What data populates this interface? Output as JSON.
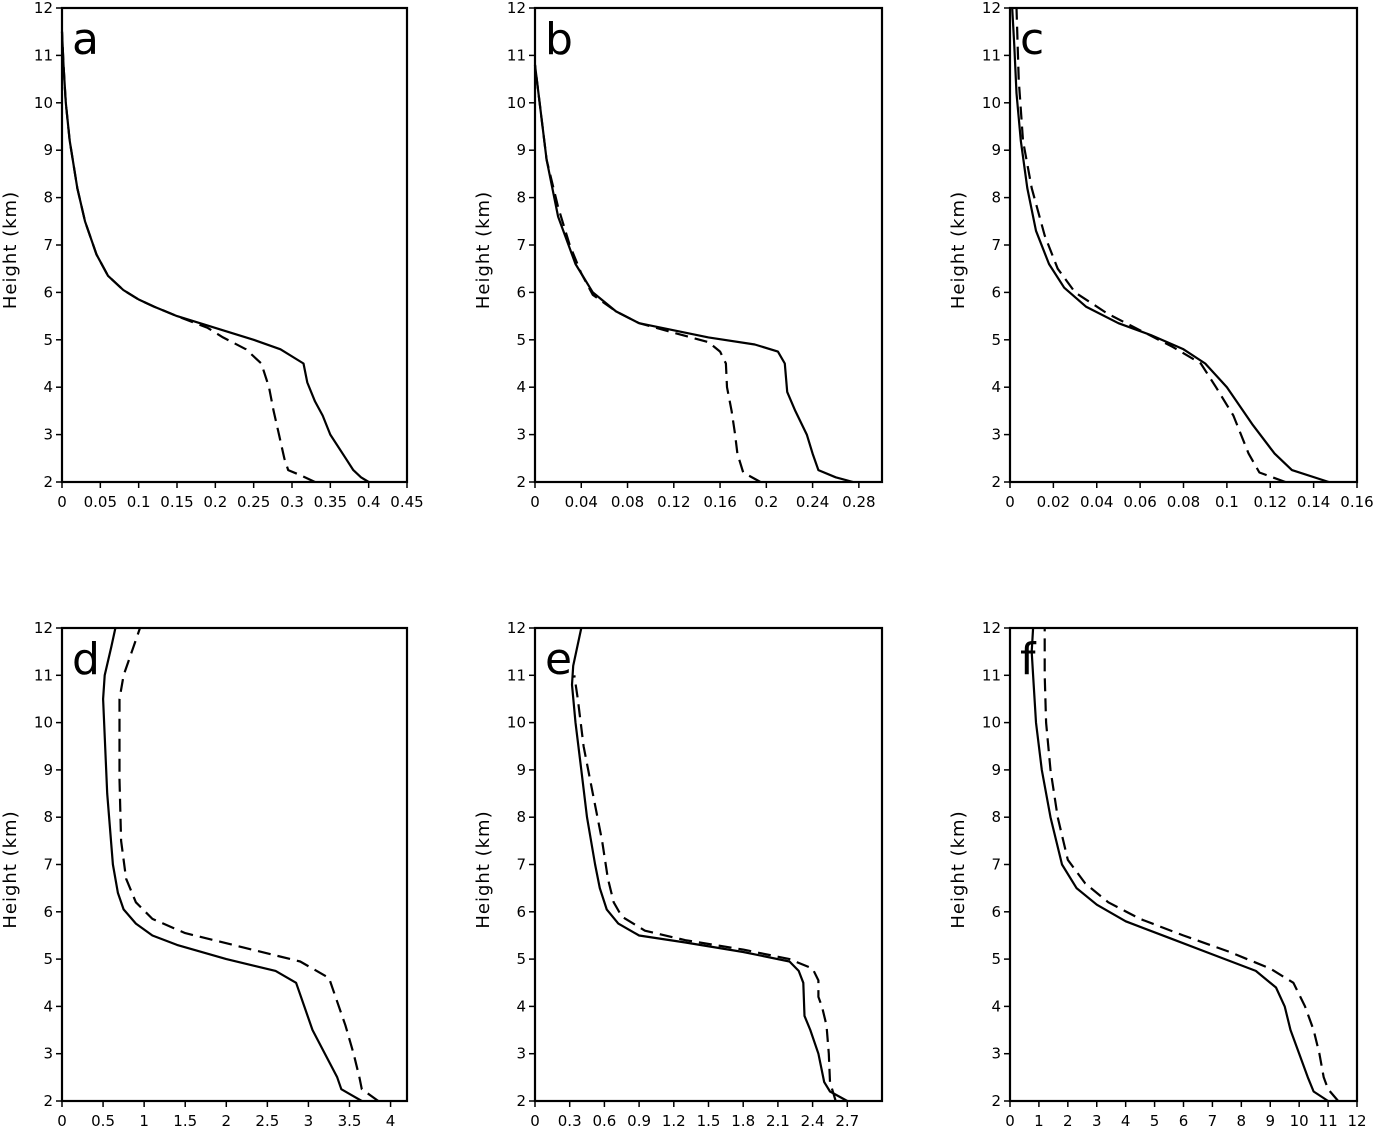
{
  "chart_data": [
    {
      "type": "line",
      "panel_label": "a",
      "ylabel": "Height (km)",
      "xlabel": "",
      "xlim": [
        0,
        0.45
      ],
      "ylim": [
        2,
        12
      ],
      "xticks": [
        0,
        0.05,
        0.1,
        0.15,
        0.2,
        0.25,
        0.3,
        0.35,
        0.4,
        0.45
      ],
      "yticks": [
        2,
        3,
        4,
        5,
        6,
        7,
        8,
        9,
        10,
        11,
        12
      ],
      "series": [
        {
          "name": "solid",
          "style": "solid",
          "x": [
            0.4,
            0.39,
            0.38,
            0.37,
            0.35,
            0.34,
            0.33,
            0.32,
            0.315,
            0.285,
            0.25,
            0.22,
            0.19,
            0.15,
            0.12,
            0.1,
            0.08,
            0.06,
            0.045,
            0.03,
            0.02,
            0.01,
            0.005,
            0.002,
            0.0
          ],
          "y": [
            2,
            2.1,
            2.25,
            2.5,
            3,
            3.4,
            3.7,
            4.1,
            4.5,
            4.8,
            5.0,
            5.15,
            5.3,
            5.5,
            5.7,
            5.85,
            6.05,
            6.35,
            6.8,
            7.5,
            8.2,
            9.2,
            10.0,
            10.8,
            11.5
          ]
        },
        {
          "name": "dashed",
          "style": "dashed",
          "x": [
            0.33,
            0.31,
            0.295,
            0.29,
            0.283,
            0.276,
            0.27,
            0.26,
            0.24,
            0.21,
            0.19,
            0.15,
            0.12,
            0.1,
            0.08,
            0.06,
            0.045,
            0.03,
            0.02,
            0.01,
            0.005,
            0.002,
            0.0
          ],
          "y": [
            2,
            2.15,
            2.25,
            2.5,
            3,
            3.5,
            4.0,
            4.5,
            4.8,
            5.05,
            5.25,
            5.5,
            5.7,
            5.85,
            6.05,
            6.35,
            6.8,
            7.5,
            8.2,
            9.2,
            10.0,
            10.8,
            11.5
          ]
        }
      ]
    },
    {
      "type": "line",
      "panel_label": "b",
      "ylabel": "Height (km)",
      "xlabel": "",
      "xlim": [
        0,
        0.3
      ],
      "ylim": [
        2,
        12
      ],
      "xticks": [
        0,
        0.04,
        0.08,
        0.12,
        0.16,
        0.2,
        0.24,
        0.28
      ],
      "yticks": [
        2,
        3,
        4,
        5,
        6,
        7,
        8,
        9,
        10,
        11,
        12
      ],
      "series": [
        {
          "name": "solid",
          "style": "solid",
          "x": [
            0.275,
            0.26,
            0.245,
            0.24,
            0.235,
            0.225,
            0.218,
            0.216,
            0.21,
            0.19,
            0.15,
            0.12,
            0.09,
            0.07,
            0.05,
            0.035,
            0.02,
            0.01,
            0.005,
            0.0
          ],
          "y": [
            2,
            2.1,
            2.25,
            2.6,
            3.0,
            3.5,
            3.9,
            4.5,
            4.75,
            4.9,
            5.05,
            5.2,
            5.35,
            5.6,
            6.0,
            6.6,
            7.6,
            8.8,
            9.8,
            10.8
          ]
        },
        {
          "name": "dashed",
          "style": "dashed",
          "x": [
            0.195,
            0.18,
            0.175,
            0.173,
            0.17,
            0.166,
            0.165,
            0.16,
            0.15,
            0.12,
            0.09,
            0.07,
            0.05,
            0.04,
            0.03,
            0.02,
            0.01,
            0.005,
            0.0
          ],
          "y": [
            2,
            2.2,
            2.6,
            3.0,
            3.5,
            4.0,
            4.5,
            4.75,
            4.95,
            5.15,
            5.35,
            5.6,
            5.95,
            6.4,
            7.0,
            7.8,
            8.8,
            9.8,
            10.8
          ]
        }
      ]
    },
    {
      "type": "line",
      "panel_label": "c",
      "ylabel": "Height (km)",
      "xlabel": "",
      "xlim": [
        0,
        0.16
      ],
      "ylim": [
        2,
        12
      ],
      "xticks": [
        0,
        0.02,
        0.04,
        0.06,
        0.08,
        0.1,
        0.12,
        0.14,
        0.16
      ],
      "yticks": [
        2,
        3,
        4,
        5,
        6,
        7,
        8,
        9,
        10,
        11,
        12
      ],
      "series": [
        {
          "name": "solid",
          "style": "solid",
          "x": [
            0.147,
            0.13,
            0.122,
            0.112,
            0.1,
            0.09,
            0.08,
            0.065,
            0.05,
            0.035,
            0.025,
            0.018,
            0.012,
            0.008,
            0.005,
            0.003,
            0.002,
            0.001
          ],
          "y": [
            2,
            2.25,
            2.6,
            3.2,
            4.0,
            4.5,
            4.8,
            5.1,
            5.35,
            5.7,
            6.1,
            6.6,
            7.3,
            8.2,
            9.2,
            10.2,
            11.2,
            12
          ]
        },
        {
          "name": "dashed",
          "style": "dashed",
          "x": [
            0.127,
            0.115,
            0.11,
            0.103,
            0.095,
            0.088,
            0.075,
            0.06,
            0.045,
            0.03,
            0.022,
            0.016,
            0.01,
            0.006,
            0.004,
            0.003
          ],
          "y": [
            2,
            2.2,
            2.6,
            3.4,
            4.0,
            4.5,
            4.85,
            5.2,
            5.55,
            6.0,
            6.5,
            7.2,
            8.2,
            9.2,
            10.5,
            12
          ]
        }
      ]
    },
    {
      "type": "line",
      "panel_label": "d",
      "ylabel": "Height (km)",
      "xlabel": "",
      "xlim": [
        0,
        4.2
      ],
      "ylim": [
        2,
        12
      ],
      "xticks": [
        0,
        0.5,
        1,
        1.5,
        2,
        2.5,
        3,
        3.5,
        4
      ],
      "yticks": [
        2,
        3,
        4,
        5,
        6,
        7,
        8,
        9,
        10,
        11,
        12
      ],
      "series": [
        {
          "name": "solid",
          "style": "solid",
          "x": [
            3.65,
            3.5,
            3.4,
            3.35,
            3.2,
            3.05,
            2.95,
            2.85,
            2.6,
            2.0,
            1.4,
            1.1,
            0.9,
            0.75,
            0.68,
            0.62,
            0.55,
            0.5,
            0.52,
            0.6,
            0.65
          ],
          "y": [
            2,
            2.15,
            2.25,
            2.5,
            3.0,
            3.5,
            4.0,
            4.5,
            4.75,
            5.0,
            5.3,
            5.5,
            5.75,
            6.05,
            6.4,
            7.0,
            8.5,
            10.5,
            11.0,
            11.6,
            12
          ]
        },
        {
          "name": "dashed",
          "style": "dashed",
          "x": [
            3.85,
            3.65,
            3.62,
            3.55,
            3.45,
            3.35,
            3.25,
            2.9,
            2.2,
            1.5,
            1.1,
            0.9,
            0.78,
            0.72,
            0.7,
            0.7,
            0.75,
            0.85,
            0.95
          ],
          "y": [
            2,
            2.25,
            2.5,
            3.0,
            3.6,
            4.1,
            4.6,
            4.95,
            5.25,
            5.55,
            5.85,
            6.2,
            6.7,
            7.5,
            8.8,
            10.5,
            11.0,
            11.5,
            12
          ]
        }
      ]
    },
    {
      "type": "line",
      "panel_label": "e",
      "ylabel": "Height (km)",
      "xlabel": "",
      "xlim": [
        0,
        3.0
      ],
      "ylim": [
        2,
        12
      ],
      "xticks": [
        0,
        0.3,
        0.6,
        0.9,
        1.2,
        1.5,
        1.8,
        2.1,
        2.4,
        2.7
      ],
      "yticks": [
        2,
        3,
        4,
        5,
        6,
        7,
        8,
        9,
        10,
        11,
        12
      ],
      "series": [
        {
          "name": "solid",
          "style": "solid",
          "x": [
            2.7,
            2.55,
            2.5,
            2.45,
            2.38,
            2.33,
            2.32,
            2.28,
            2.2,
            1.8,
            1.3,
            0.9,
            0.72,
            0.62,
            0.56,
            0.52,
            0.45,
            0.4,
            0.35,
            0.32,
            0.33,
            0.4
          ],
          "y": [
            2,
            2.2,
            2.4,
            3.0,
            3.5,
            3.8,
            4.5,
            4.75,
            4.95,
            5.15,
            5.35,
            5.5,
            5.75,
            6.05,
            6.5,
            7.0,
            8.0,
            9.0,
            10.0,
            10.8,
            11.2,
            12
          ]
        },
        {
          "name": "dashed",
          "style": "dashed",
          "x": [
            2.6,
            2.55,
            2.54,
            2.52,
            2.48,
            2.45,
            2.45,
            2.4,
            2.2,
            1.8,
            1.3,
            0.95,
            0.75,
            0.68,
            0.63,
            0.58,
            0.5,
            0.42,
            0.37,
            0.34
          ],
          "y": [
            2,
            2.4,
            3.0,
            3.6,
            4.0,
            4.2,
            4.55,
            4.8,
            5.0,
            5.2,
            5.4,
            5.6,
            5.9,
            6.2,
            6.7,
            7.5,
            8.5,
            9.5,
            10.5,
            11.0
          ]
        }
      ]
    },
    {
      "type": "line",
      "panel_label": "f",
      "ylabel": "Height (km)",
      "xlabel": "",
      "xlim": [
        0,
        12
      ],
      "ylim": [
        2,
        12
      ],
      "xticks": [
        0,
        1,
        2,
        3,
        4,
        5,
        6,
        7,
        8,
        9,
        10,
        11,
        12
      ],
      "yticks": [
        2,
        3,
        4,
        5,
        6,
        7,
        8,
        9,
        10,
        11,
        12
      ],
      "series": [
        {
          "name": "solid",
          "style": "solid",
          "x": [
            11.0,
            10.5,
            10.3,
            10.0,
            9.7,
            9.5,
            9.2,
            8.5,
            7.0,
            5.5,
            4.0,
            3.0,
            2.3,
            1.8,
            1.4,
            1.1,
            0.9,
            0.8,
            0.75,
            0.8
          ],
          "y": [
            2,
            2.2,
            2.5,
            3.0,
            3.5,
            4.0,
            4.4,
            4.75,
            5.1,
            5.45,
            5.8,
            6.15,
            6.5,
            7.0,
            8.0,
            9.0,
            10.0,
            11.0,
            11.5,
            12
          ]
        },
        {
          "name": "dashed",
          "style": "dashed",
          "x": [
            11.35,
            11.0,
            10.85,
            10.7,
            10.5,
            10.2,
            9.8,
            9.0,
            7.6,
            6.0,
            4.5,
            3.4,
            2.6,
            2.0,
            1.65,
            1.4,
            1.25,
            1.2,
            1.2
          ],
          "y": [
            2,
            2.25,
            2.5,
            3.0,
            3.5,
            4.0,
            4.5,
            4.8,
            5.15,
            5.5,
            5.85,
            6.2,
            6.6,
            7.1,
            8.0,
            9.0,
            10.0,
            11.0,
            12
          ]
        }
      ]
    }
  ]
}
